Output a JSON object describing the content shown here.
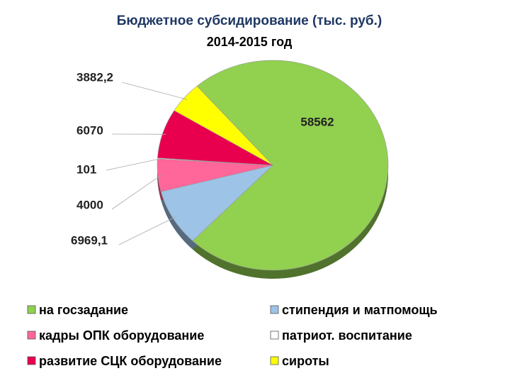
{
  "chart_data": {
    "type": "pie",
    "title": "Бюджетное субсидирование (тыс. руб.)",
    "subtitle": "2014-2015 год",
    "categories": [
      "на госзадание",
      "стипендия и матпомощь",
      "кадры ОПК оборудование",
      "патриот. воспитание",
      "развитие СЦК оборудование",
      "сироты"
    ],
    "values": [
      58562,
      6969.1,
      4000,
      101,
      6070,
      3882.2
    ],
    "value_labels": [
      "58562",
      "6969,1",
      "4000",
      "101",
      "6070",
      "3882,2"
    ],
    "colors": [
      "#92d050",
      "#9dc3e6",
      "#ff6699",
      "#ffffff",
      "#e8004f",
      "#ffff00"
    ]
  }
}
